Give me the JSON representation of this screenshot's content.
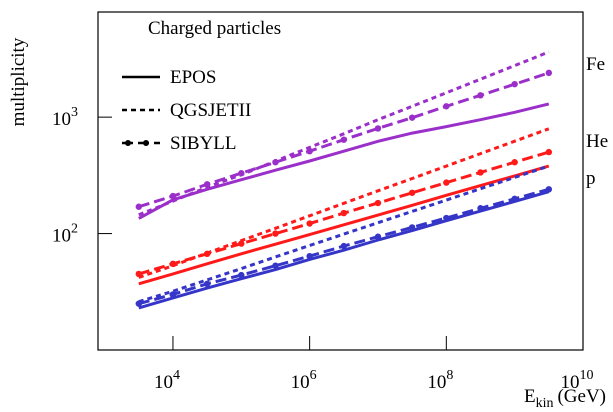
{
  "chart_data": {
    "type": "line",
    "log_x": true,
    "log_y": true,
    "title": "Charged particles",
    "ylabel": "multiplicity",
    "xlabel": {
      "main": "E",
      "sub": "kin",
      "unit": "(GeV)"
    },
    "xlim": [
      800,
      10000000000
    ],
    "ylim": [
      10,
      8000
    ],
    "xticks": [
      {
        "value": 10000,
        "label": "10",
        "power": "4"
      },
      {
        "value": 1000000,
        "label": "10",
        "power": "6"
      },
      {
        "value": 100000000,
        "label": "10",
        "power": "8"
      },
      {
        "value": 10000000000,
        "label": "10",
        "power": "10"
      }
    ],
    "yticks": [
      {
        "value": 100,
        "label": "10",
        "power": "2"
      },
      {
        "value": 1000,
        "label": "10",
        "power": "3"
      }
    ],
    "x": [
      3162,
      10000,
      31623,
      100000,
      316228,
      1000000,
      3162278,
      10000000,
      31622777,
      100000000,
      316227766,
      1000000000,
      3162277660
    ],
    "models": [
      {
        "name": "EPOS",
        "style": "solid"
      },
      {
        "name": "QGSJETII",
        "style": "dashed"
      },
      {
        "name": "SIBYLL",
        "style": "dash-dot"
      }
    ],
    "particles": [
      {
        "name": "Fe",
        "color": "#9b2fc9",
        "values": [
          [
            135,
            195,
            240,
            290,
            350,
            420,
            510,
            620,
            730,
            830,
            950,
            1100,
            1300
          ],
          [
            145,
            190,
            250,
            320,
            420,
            550,
            720,
            950,
            1240,
            1620,
            2120,
            2770,
            3630
          ],
          [
            170,
            210,
            265,
            330,
            410,
            510,
            640,
            800,
            990,
            1240,
            1540,
            1920,
            2400
          ]
        ]
      },
      {
        "name": "He",
        "color": "#ff1a1a",
        "values": [
          [
            37,
            45,
            55,
            67,
            81,
            98,
            119,
            144,
            175,
            213,
            258,
            313,
            380
          ],
          [
            42,
            53,
            68,
            87,
            111,
            142,
            182,
            233,
            297,
            380,
            486,
            621,
            794
          ],
          [
            45,
            55,
            67,
            82,
            100,
            122,
            150,
            183,
            224,
            274,
            335,
            410,
            501
          ]
        ]
      },
      {
        "name": "p",
        "color": "#3535c8",
        "values": [
          [
            23,
            28,
            34,
            41,
            49,
            60,
            72,
            88,
            106,
            129,
            156,
            189,
            229
          ],
          [
            26,
            32,
            40,
            50,
            63,
            79,
            99,
            124,
            155,
            194,
            243,
            304,
            380
          ],
          [
            25,
            30,
            37,
            44,
            53,
            64,
            78,
            94,
            113,
            136,
            165,
            199,
            240
          ]
        ]
      }
    ]
  }
}
